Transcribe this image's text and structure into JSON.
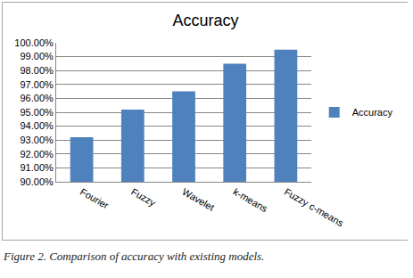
{
  "chart_data": {
    "type": "bar",
    "title": "Accuracy",
    "caption": "Figure 2. Comparison of accuracy with existing models.",
    "categories": [
      "Fourier",
      "Fuzzy",
      "Wavelet",
      "k-means",
      "Fuzzy c-means"
    ],
    "series": [
      {
        "name": "Accuracy",
        "color": "#4f81bd",
        "values": [
          93.2,
          95.2,
          96.5,
          98.5,
          99.5
        ]
      }
    ],
    "ylim": [
      90,
      100
    ],
    "yticks": [
      {
        "value": 90,
        "label": "90.00%"
      },
      {
        "value": 91,
        "label": "91.00%"
      },
      {
        "value": 92,
        "label": "92.00%"
      },
      {
        "value": 93,
        "label": "93.00%"
      },
      {
        "value": 94,
        "label": "94.00%"
      },
      {
        "value": 95,
        "label": "95.00%"
      },
      {
        "value": 96,
        "label": "96.00%"
      },
      {
        "value": 97,
        "label": "97.00%"
      },
      {
        "value": 98,
        "label": "98.00%"
      },
      {
        "value": 99,
        "label": "99.00%"
      },
      {
        "value": 100,
        "label": "100.00%"
      }
    ],
    "grid": true,
    "legend": "right"
  }
}
